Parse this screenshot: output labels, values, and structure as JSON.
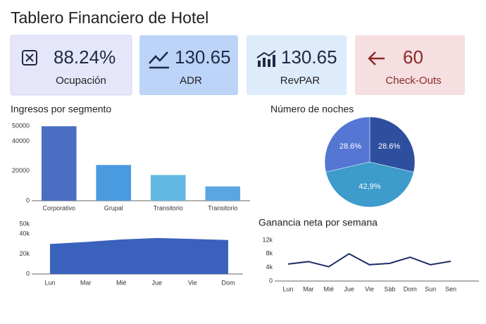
{
  "header": {
    "title": "Tablero Financiero de Hotel"
  },
  "kpis": [
    {
      "value": "88.24%",
      "label": "Ocupación"
    },
    {
      "value": "130.65",
      "label": "ADR"
    },
    {
      "value": "130.65",
      "label": "RevPAR"
    },
    {
      "value": "60",
      "label": "Check-Outs"
    }
  ],
  "chart_data": [
    {
      "type": "bar",
      "title": "Ingresos por segmento",
      "categories": [
        "Corporativo",
        "Grupal",
        "Transitorio",
        "Transitorio"
      ],
      "values": [
        50000,
        24000,
        17300,
        9600
      ],
      "colors": [
        "#4a6fc2",
        "#4a9ae0",
        "#62b8e2",
        "#5aa6e2"
      ],
      "ylim": [
        0,
        52000
      ],
      "yticks": [
        0,
        20000,
        40000,
        50000
      ]
    },
    {
      "type": "pie",
      "title": "Número de noches",
      "values": [
        28.6,
        42.9,
        28.6
      ],
      "value_labels": [
        "28.6%",
        "42,9%",
        "28.6%"
      ],
      "colors": [
        "#2e4f9e",
        "#3d9ccb",
        "#5576d3"
      ]
    },
    {
      "type": "area",
      "categories": [
        "Lun",
        "Mar",
        "Mié",
        "Jue",
        "Vie",
        "Dom"
      ],
      "values": [
        30000,
        32000,
        34500,
        36000,
        35000,
        34000
      ],
      "color": "#3a62bd",
      "ylim": [
        0,
        50000
      ],
      "yticks": [
        0,
        {
          "value": 20000,
          "label": "20k"
        },
        {
          "value": 40000,
          "label": "40k"
        },
        {
          "value": 50000,
          "label": "50k"
        }
      ]
    },
    {
      "type": "line",
      "title": "Ganancia neta por semana",
      "categories": [
        "Lun",
        "Mar",
        "Mié",
        "Jue",
        "Vie",
        "Sàb",
        "Dom",
        "Sun",
        "Sen"
      ],
      "values": [
        5000,
        5700,
        4200,
        8000,
        4800,
        5200,
        7000,
        4800,
        5800
      ],
      "color": "#1f2f66",
      "ylim": [
        0,
        12000
      ],
      "yticks": [
        0,
        {
          "value": 4000,
          "label": "4k"
        },
        {
          "value": 8000,
          "label": "8k"
        },
        {
          "value": 12000,
          "label": "12k"
        }
      ]
    }
  ]
}
